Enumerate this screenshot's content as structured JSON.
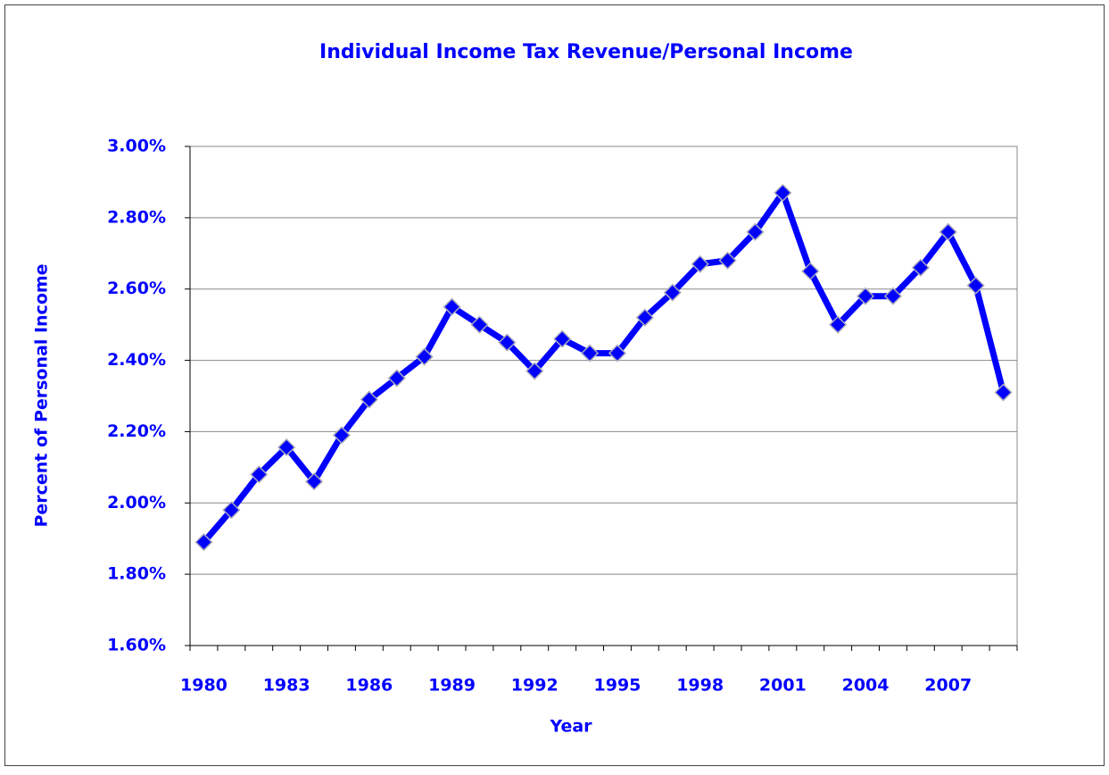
{
  "chart_data": {
    "type": "line",
    "title": "Individual Income Tax Revenue/Personal Income",
    "x_label": "Year",
    "y_label": "Percent of Personal Income",
    "categories": [
      "1980",
      null,
      null,
      "1983",
      null,
      null,
      "1986",
      null,
      null,
      "1989",
      null,
      null,
      "1992",
      null,
      null,
      "1995",
      null,
      null,
      "1998",
      null,
      null,
      "2001",
      null,
      null,
      "2004",
      null,
      null,
      "2007",
      null,
      null
    ],
    "series": [
      {
        "name": "Individual Income Tax Revenue/Personal Income",
        "color": "#0000ff",
        "values": [
          1.89,
          1.98,
          2.08,
          2.156,
          2.06,
          2.19,
          2.29,
          2.35,
          2.41,
          2.55,
          2.5,
          2.45,
          2.37,
          2.46,
          2.42,
          2.42,
          2.52,
          2.59,
          2.67,
          2.68,
          2.76,
          2.87,
          2.65,
          2.5,
          2.58,
          2.58,
          2.66,
          2.76,
          2.61,
          2.31
        ]
      }
    ],
    "ylim": [
      1.6,
      3.0
    ],
    "yticks": [
      {
        "value": 1.6,
        "label": "1.60%"
      },
      {
        "value": 1.8,
        "label": "1.80%"
      },
      {
        "value": 2.0,
        "label": "2.00%"
      },
      {
        "value": 2.2,
        "label": "2.20%"
      },
      {
        "value": 2.4,
        "label": "2.40%"
      },
      {
        "value": 2.6,
        "label": "2.60%"
      },
      {
        "value": 2.8,
        "label": "2.80%"
      },
      {
        "value": 3.0,
        "label": "3.00%"
      }
    ],
    "grid": true
  }
}
